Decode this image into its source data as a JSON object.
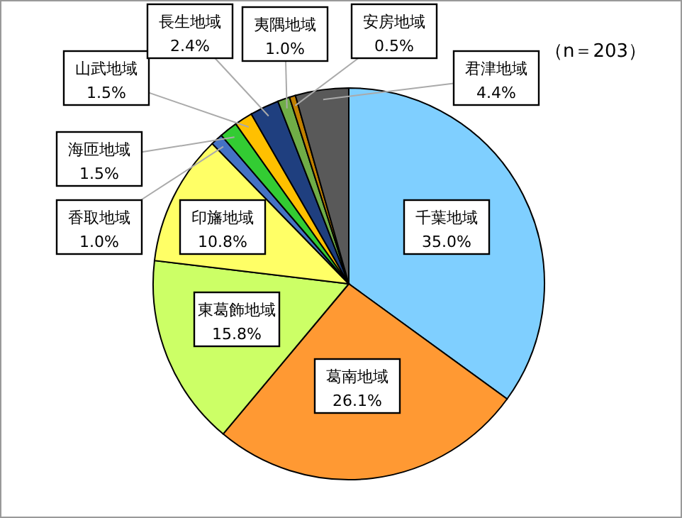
{
  "chart_data": {
    "type": "pie",
    "categories": [
      "千葉地域",
      "葛南地域",
      "東葛飾地域",
      "印旛地域",
      "香取地域",
      "海匝地域",
      "山武地域",
      "長生地域",
      "夷隅地域",
      "安房地域",
      "君津地域"
    ],
    "values": [
      35.0,
      26.1,
      15.8,
      10.8,
      1.0,
      1.5,
      1.5,
      2.4,
      1.0,
      0.5,
      4.4
    ],
    "colors": [
      "#7fcfff",
      "#ff9933",
      "#ccff66",
      "#ffff66",
      "#4472c4",
      "#33cc33",
      "#ffc000",
      "#1f3f7f",
      "#70ad47",
      "#c08000",
      "#595959"
    ],
    "value_labels": [
      "35.0%",
      "26.1%",
      "15.8%",
      "10.8%",
      "1.0%",
      "1.5%",
      "1.5%",
      "2.4%",
      "1.0%",
      "0.5%",
      "4.4%"
    ],
    "annotations": [
      "（n＝203）"
    ],
    "legend": false
  }
}
